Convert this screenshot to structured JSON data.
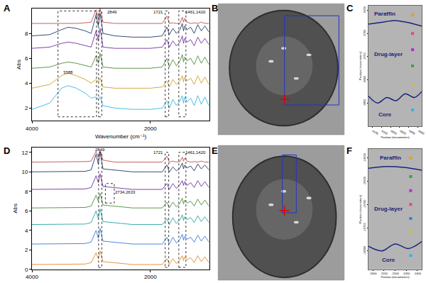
{
  "chart_data": [
    {
      "label": "A",
      "type": "line",
      "xlabel": "Wavenumber (cm⁻¹)",
      "ylabel": "Abs",
      "x": [
        4000,
        3700,
        3500,
        3388,
        3250,
        3100,
        3000,
        2917,
        2880,
        2849,
        2800,
        2600,
        2300,
        2000,
        1800,
        1721,
        1680,
        1620,
        1560,
        1500,
        1461,
        1440,
        1420,
        1380,
        1320,
        1260,
        1200,
        1140,
        1080,
        1010
      ],
      "xlim": [
        4000,
        1000
      ],
      "xticks": [
        4000,
        2000
      ],
      "ylim": [
        1,
        10
      ],
      "yticks": [
        2,
        4,
        6,
        8
      ],
      "grid": false,
      "series": [
        {
          "color": "#c0504d",
          "values": [
            8.8,
            8.8,
            8.8,
            8.8,
            8.8,
            8.85,
            8.9,
            9.9,
            9.2,
            10.0,
            8.9,
            8.8,
            8.8,
            8.8,
            8.8,
            9.4,
            8.8,
            8.85,
            8.8,
            8.8,
            9.3,
            8.9,
            9.2,
            8.9,
            8.8,
            8.85,
            8.8,
            8.9,
            8.8,
            8.8
          ]
        },
        {
          "color": "#1f3864",
          "values": [
            7.8,
            7.9,
            8.3,
            8.5,
            8.4,
            8.2,
            8.0,
            9.5,
            8.6,
            9.6,
            8.0,
            7.8,
            7.7,
            7.7,
            7.8,
            8.5,
            7.9,
            8.4,
            8.0,
            8.3,
            8.8,
            8.2,
            8.6,
            8.3,
            8.5,
            8.0,
            8.7,
            8.2,
            8.6,
            8.1
          ]
        },
        {
          "color": "#7030a0",
          "values": [
            6.8,
            6.9,
            7.2,
            7.3,
            7.2,
            7.0,
            6.9,
            8.2,
            7.4,
            8.4,
            6.9,
            6.8,
            6.8,
            6.8,
            6.9,
            7.5,
            6.9,
            7.4,
            7.0,
            7.3,
            7.8,
            7.2,
            7.6,
            7.3,
            7.5,
            7.0,
            7.7,
            7.2,
            7.6,
            7.1
          ]
        },
        {
          "color": "#4f8a3a",
          "values": [
            5.2,
            5.3,
            5.6,
            5.7,
            5.6,
            5.4,
            5.3,
            6.2,
            5.6,
            6.4,
            5.3,
            5.2,
            5.2,
            5.2,
            5.3,
            6.0,
            5.3,
            5.9,
            5.4,
            5.8,
            6.3,
            5.7,
            6.1,
            5.8,
            6.0,
            5.5,
            6.2,
            5.6,
            6.1,
            5.5
          ]
        },
        {
          "color": "#c9a227",
          "values": [
            3.6,
            3.9,
            4.6,
            4.8,
            4.6,
            4.3,
            4.0,
            4.3,
            4.1,
            4.4,
            3.7,
            3.6,
            3.6,
            3.6,
            3.7,
            4.2,
            3.7,
            4.3,
            3.9,
            4.2,
            4.6,
            4.1,
            4.5,
            4.2,
            4.4,
            3.9,
            4.6,
            4.0,
            4.5,
            3.9
          ]
        },
        {
          "color": "#33b5e5",
          "values": [
            1.9,
            2.4,
            3.6,
            3.8,
            3.6,
            3.2,
            2.8,
            2.9,
            2.7,
            2.9,
            2.2,
            2.0,
            1.9,
            1.9,
            2.0,
            2.6,
            2.0,
            2.7,
            2.2,
            2.6,
            3.0,
            2.4,
            2.9,
            2.5,
            2.8,
            2.2,
            3.0,
            2.3,
            2.9,
            2.2
          ]
        }
      ],
      "annotations": [
        {
          "x": 3388,
          "y": 4.9,
          "text": "3388"
        },
        {
          "x": 2650,
          "y": 9.7,
          "text": "2849"
        },
        {
          "x": 1870,
          "y": 9.7,
          "text": "1721"
        },
        {
          "x": 1240,
          "y": 9.7,
          "text": "1461,1420"
        }
      ],
      "regions": [
        {
          "x0": 3560,
          "x1": 2910,
          "y0": 1.3,
          "y1": 9.8
        },
        {
          "x0": 2875,
          "x1": 2820,
          "y0": 1.3,
          "y1": 9.8
        },
        {
          "x0": 1750,
          "x1": 1690,
          "y0": 1.3,
          "y1": 9.8
        },
        {
          "x0": 1520,
          "x1": 1400,
          "y0": 1.3,
          "y1": 9.8
        }
      ]
    },
    {
      "label": "B",
      "type": "image"
    },
    {
      "label": "C",
      "type": "scatter",
      "xlabel": "Position (micrometers)",
      "ylabel": "Position (micrometers)",
      "xlim": [
        -6170,
        -5880
      ],
      "xticks": [
        -6150,
        -6100,
        -6050,
        -6000,
        -5950,
        -5900
      ],
      "ylim": [
        -9900,
        -9640
      ],
      "yticks": [
        -9850,
        -9800,
        -9750,
        -9700,
        -9650
      ],
      "boundaries": [
        {
          "color": "#1a237e",
          "x": [
            -6170,
            -6100,
            -6030,
            -5960,
            -5880
          ],
          "values": [
            -9680,
            -9676,
            -9672,
            -9676,
            -9684
          ]
        },
        {
          "color": "#1a237e",
          "x": [
            -6170,
            -6120,
            -6070,
            -6020,
            -5970,
            -5920,
            -5880
          ],
          "values": [
            -9835,
            -9850,
            -9838,
            -9845,
            -9830,
            -9838,
            -9825
          ]
        }
      ],
      "points": {
        "x": [
          -5930,
          -5930,
          -5930,
          -5930,
          -5930,
          -5930
        ],
        "values": [
          -9660,
          -9700,
          -9735,
          -9770,
          -9810,
          -9865
        ],
        "colors": [
          "#f39c12",
          "#e84393",
          "#c026d3",
          "#43a047",
          "#d4c21b",
          "#29b6f6"
        ]
      },
      "annotations": [
        {
          "x": -6080,
          "y": -9657,
          "text": "Paraffin"
        },
        {
          "x": -6060,
          "y": -9745,
          "text": "Drug-layer"
        },
        {
          "x": -6080,
          "y": -9875,
          "text": "Core"
        }
      ]
    },
    {
      "label": "D",
      "type": "line",
      "ylabel": "Abs",
      "x": [
        4000,
        3700,
        3500,
        3388,
        3250,
        3100,
        3000,
        2917,
        2880,
        2849,
        2800,
        2600,
        2300,
        2000,
        1800,
        1721,
        1680,
        1620,
        1560,
        1500,
        1461,
        1440,
        1420,
        1380,
        1320,
        1260,
        1200,
        1140,
        1080,
        1010
      ],
      "xlim": [
        4000,
        1000
      ],
      "xticks": [
        4000,
        2000
      ],
      "ylim": [
        0,
        12.5
      ],
      "yticks": [
        0,
        2,
        4,
        6,
        8,
        10,
        12
      ],
      "grid": false,
      "series": [
        {
          "color": "#c0504d",
          "values": [
            11.0,
            11.0,
            11.0,
            11.0,
            11.0,
            11.05,
            11.1,
            12.1,
            11.5,
            12.2,
            11.2,
            11.0,
            11.0,
            11.0,
            11.0,
            11.6,
            11.0,
            11.1,
            11.0,
            11.05,
            11.5,
            11.1,
            11.4,
            11.1,
            11.0,
            11.05,
            11.0,
            11.1,
            11.0,
            11.0
          ]
        },
        {
          "color": "#1f3864",
          "values": [
            10.0,
            10.0,
            10.0,
            10.0,
            10.0,
            10.05,
            10.2,
            11.8,
            10.8,
            12.0,
            10.3,
            10.2,
            10.0,
            10.0,
            10.0,
            10.7,
            10.0,
            10.5,
            10.1,
            10.4,
            10.9,
            10.3,
            10.7,
            10.4,
            10.6,
            10.1,
            10.8,
            10.3,
            10.7,
            10.2
          ]
        },
        {
          "color": "#7030a0",
          "values": [
            8.2,
            8.2,
            8.2,
            8.2,
            8.2,
            8.25,
            8.4,
            9.6,
            8.9,
            9.8,
            8.5,
            8.4,
            8.2,
            8.2,
            8.2,
            8.8,
            8.2,
            8.8,
            8.3,
            8.7,
            9.1,
            8.6,
            9.0,
            8.6,
            8.9,
            8.4,
            9.1,
            8.5,
            9.0,
            8.4
          ]
        },
        {
          "color": "#4f8a3a",
          "values": [
            6.3,
            6.3,
            6.3,
            6.3,
            6.3,
            6.35,
            6.5,
            7.6,
            7.0,
            7.8,
            6.6,
            6.5,
            6.3,
            6.3,
            6.3,
            6.9,
            6.3,
            6.9,
            6.4,
            6.8,
            7.3,
            6.7,
            7.1,
            6.8,
            7.0,
            6.5,
            7.2,
            6.6,
            7.1,
            6.5
          ]
        },
        {
          "color": "#2ba3a3",
          "values": [
            4.6,
            4.6,
            4.6,
            4.6,
            4.6,
            4.65,
            4.8,
            6.0,
            5.2,
            6.2,
            4.9,
            4.8,
            4.6,
            4.6,
            4.6,
            5.2,
            4.6,
            5.3,
            4.7,
            5.1,
            5.6,
            5.0,
            5.4,
            5.1,
            5.3,
            4.8,
            5.5,
            4.9,
            5.4,
            4.8
          ]
        },
        {
          "color": "#3a7bd5",
          "values": [
            2.6,
            2.6,
            2.6,
            2.6,
            2.6,
            2.65,
            2.8,
            4.0,
            3.2,
            4.2,
            2.9,
            2.8,
            2.6,
            2.6,
            2.6,
            3.3,
            2.6,
            3.3,
            2.7,
            3.1,
            3.6,
            3.0,
            3.4,
            3.1,
            3.3,
            2.8,
            3.5,
            2.9,
            3.4,
            2.8
          ]
        },
        {
          "color": "#e08a2e",
          "values": [
            0.5,
            0.5,
            0.5,
            0.5,
            0.5,
            0.55,
            0.7,
            1.7,
            1.1,
            1.9,
            0.8,
            0.7,
            0.5,
            0.5,
            0.5,
            1.1,
            0.5,
            1.1,
            0.6,
            1.0,
            1.4,
            0.9,
            1.3,
            1.0,
            1.2,
            0.7,
            1.4,
            0.8,
            1.3,
            0.7
          ]
        }
      ],
      "annotations": [
        {
          "x": 2849,
          "y": 12.3,
          "text": "2849"
        },
        {
          "x": 2420,
          "y": 7.9,
          "text": "2734,2633"
        },
        {
          "x": 1870,
          "y": 12.0,
          "text": "1721"
        },
        {
          "x": 1240,
          "y": 12.0,
          "text": "1461,1420"
        }
      ],
      "regions": [
        {
          "x0": 2875,
          "x1": 2820,
          "y0": 0.2,
          "y1": 12.0
        },
        {
          "x0": 2760,
          "x1": 2610,
          "y0": 6.8,
          "y1": 8.8
        },
        {
          "x0": 1750,
          "x1": 1690,
          "y0": 0.2,
          "y1": 12.0
        },
        {
          "x0": 1520,
          "x1": 1400,
          "y0": 0.2,
          "y1": 12.0
        }
      ]
    },
    {
      "label": "E",
      "type": "image"
    },
    {
      "label": "F",
      "type": "scatter",
      "xlabel": "Position (micrometers)",
      "ylabel": "Position (micrometers)",
      "xlim": [
        -1620,
        -1380
      ],
      "xticks": [
        -1600,
        -1550,
        -1500,
        -1450,
        -1400
      ],
      "ylim": [
        -19840,
        -19580
      ],
      "yticks": [
        -19800,
        -19750,
        -19700,
        -19650,
        -19600
      ],
      "boundaries": [
        {
          "color": "#1a237e",
          "x": [
            -1620,
            -1540,
            -1460,
            -1380
          ],
          "values": [
            -19622,
            -19618,
            -19620,
            -19626
          ]
        },
        {
          "color": "#1a237e",
          "x": [
            -1620,
            -1560,
            -1500,
            -1440,
            -1380
          ],
          "values": [
            -19790,
            -19800,
            -19785,
            -19795,
            -19780
          ]
        }
      ],
      "points": {
        "x": [
          -1430,
          -1430,
          -1430,
          -1430,
          -1430,
          -1430,
          -1430
        ],
        "values": [
          -19600,
          -19640,
          -19670,
          -19700,
          -19730,
          -19760,
          -19810
        ],
        "colors": [
          "#f39c12",
          "#43a047",
          "#c026d3",
          "#e84393",
          "#1e88e5",
          "#d4c21b",
          "#29b6f6"
        ]
      },
      "annotations": [
        {
          "x": -1520,
          "y": -19600,
          "text": "Paraffin"
        },
        {
          "x": -1530,
          "y": -19710,
          "text": "Drug-layer"
        },
        {
          "x": -1530,
          "y": -19820,
          "text": "Core"
        }
      ]
    }
  ]
}
